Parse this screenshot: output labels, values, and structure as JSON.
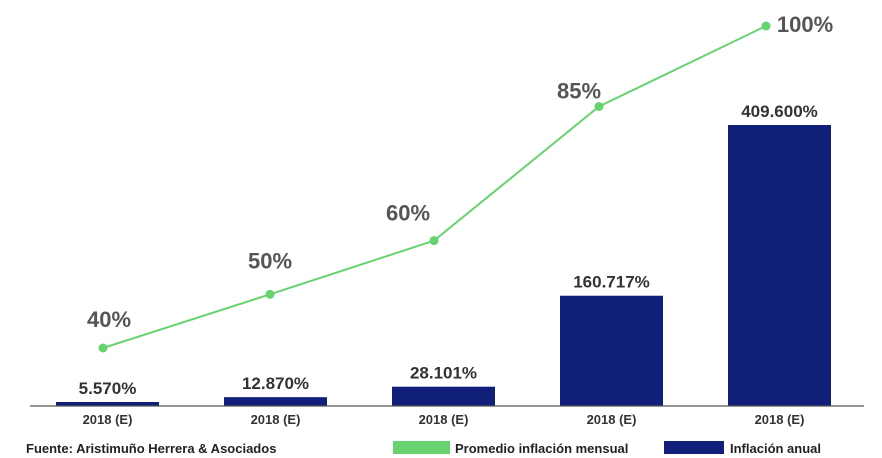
{
  "chart_data": {
    "type": "bar",
    "categories": [
      "2018 (E)",
      "2018 (E)",
      "2018 (E)",
      "2018 (E)",
      "2018 (E)"
    ],
    "series": [
      {
        "name": "Inflación anual",
        "kind": "bar",
        "color": "#0f1f7a",
        "values": [
          5570,
          12870,
          28101,
          160717,
          409600
        ],
        "labels": [
          "5.570%",
          "12.870%",
          "28.101%",
          "160.717%",
          "409.600%"
        ]
      },
      {
        "name": "Promedio inflación mensual",
        "kind": "line",
        "color": "#66d36e",
        "values": [
          40,
          50,
          60,
          85,
          100
        ],
        "labels": [
          "40%",
          "50%",
          "60%",
          "85%",
          "100%"
        ]
      }
    ],
    "source": "Fuente: Aristimuño Herrera & Asociados",
    "legend_position": "bottom-right",
    "grid": false
  }
}
